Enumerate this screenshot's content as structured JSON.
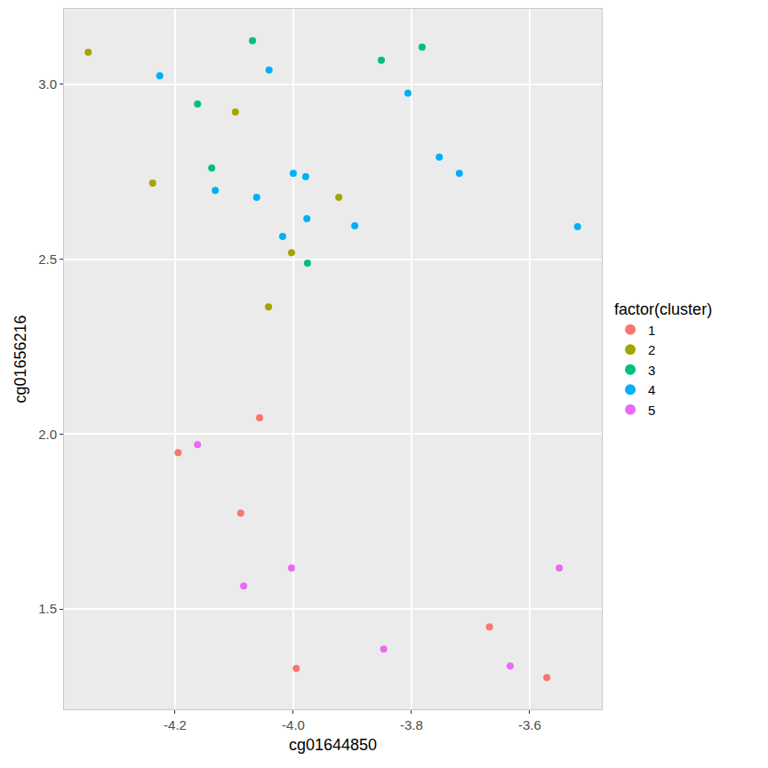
{
  "chart_data": {
    "type": "scatter",
    "x_label": "cg01644850",
    "y_label": "cg01656216",
    "legend_title": "factor(cluster)",
    "legend": "right",
    "grid": true,
    "marker": "circle",
    "xlim": [
      -4.388,
      -3.478
    ],
    "ylim": [
      1.213,
      3.216
    ],
    "xticks": [
      -4.2,
      {
        "value": -4,
        "label": "-4.0"
      },
      -3.8,
      -3.6
    ],
    "yticks": [
      1.5,
      {
        "value": 2,
        "label": "2.0"
      },
      2.5,
      {
        "value": 3,
        "label": "3.0"
      }
    ],
    "series": [
      {
        "name": "1",
        "color": "#F8766D",
        "x": [
          -4.057,
          -4.195,
          -4.089,
          -3.995,
          -3.668,
          -3.571
        ],
        "values": [
          2.047,
          1.947,
          1.774,
          1.33,
          1.449,
          1.304
        ]
      },
      {
        "name": "2",
        "color": "#A3A500",
        "x": [
          -4.347,
          -4.098,
          -4.238,
          -3.923,
          -4.003,
          -4.042
        ],
        "values": [
          3.092,
          2.921,
          2.718,
          2.677,
          2.519,
          2.364
        ]
      },
      {
        "name": "3",
        "color": "#00BF7D",
        "x": [
          -4.069,
          -3.782,
          -3.851,
          -4.162,
          -4.138,
          -3.976
        ],
        "values": [
          3.125,
          3.107,
          3.069,
          2.944,
          2.761,
          2.489
        ]
      },
      {
        "name": "4",
        "color": "#00B0F6",
        "x": [
          -4.226,
          -4.041,
          -3.806,
          -3.753,
          -3.719,
          -4.0,
          -3.979,
          -4.132,
          -4.062,
          -3.977,
          -4.018,
          -3.896,
          -3.519
        ],
        "values": [
          3.025,
          3.041,
          2.975,
          2.792,
          2.746,
          2.746,
          2.736,
          2.697,
          2.677,
          2.616,
          2.565,
          2.596,
          2.593
        ]
      },
      {
        "name": "5",
        "color": "#E76BF3",
        "x": [
          -4.162,
          -4.003,
          -4.084,
          -3.847,
          -3.633,
          -3.55
        ],
        "values": [
          1.97,
          1.617,
          1.566,
          1.385,
          1.337,
          1.617
        ]
      }
    ]
  }
}
